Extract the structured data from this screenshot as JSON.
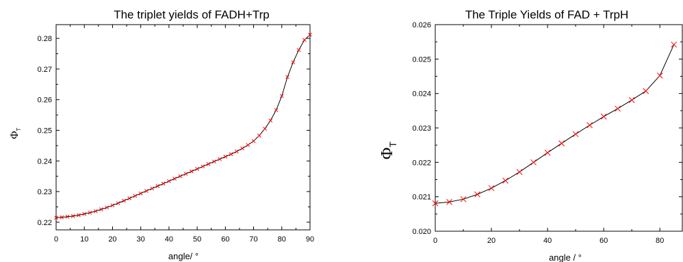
{
  "chart_data": [
    {
      "type": "line",
      "title": "The triplet yields of FADH+Trp",
      "xlabel": "angle/ °",
      "ylabel_main": "Φ",
      "ylabel_sub": "T",
      "xlim": [
        0,
        90
      ],
      "ylim": [
        0.2175,
        0.2845
      ],
      "xticks": [
        "0",
        "10",
        "20",
        "30",
        "40",
        "50",
        "60",
        "70",
        "80",
        "90"
      ],
      "yticks": [
        "0.22",
        "0.23",
        "0.24",
        "0.25",
        "0.26",
        "0.27",
        "0.28"
      ],
      "grid": false,
      "series": [
        {
          "line_color": "#000000",
          "marker_color": "#ff0000",
          "marker": "x",
          "x": [
            0,
            2,
            4,
            6,
            8,
            10,
            12,
            14,
            16,
            18,
            20,
            22,
            24,
            26,
            28,
            30,
            32,
            34,
            36,
            38,
            40,
            42,
            44,
            46,
            48,
            50,
            52,
            54,
            56,
            58,
            60,
            62,
            64,
            66,
            68,
            70,
            72,
            74,
            76,
            78,
            80,
            82,
            84,
            86,
            88,
            90
          ],
          "y": [
            0.2215,
            0.2216,
            0.2218,
            0.222,
            0.2223,
            0.2227,
            0.2231,
            0.2236,
            0.2242,
            0.2248,
            0.2255,
            0.2262,
            0.227,
            0.2278,
            0.2286,
            0.2294,
            0.2302,
            0.231,
            0.2318,
            0.2326,
            0.2334,
            0.2342,
            0.235,
            0.2358,
            0.2366,
            0.2374,
            0.2382,
            0.239,
            0.2398,
            0.2406,
            0.2414,
            0.2422,
            0.2431,
            0.2441,
            0.2452,
            0.2465,
            0.2483,
            0.2505,
            0.2532,
            0.2566,
            0.2612,
            0.2674,
            0.2722,
            0.2762,
            0.2795,
            0.2812
          ]
        }
      ]
    },
    {
      "type": "line",
      "title": "The Triple Yields of FAD + TrpH",
      "xlabel": "angle / °",
      "ylabel_main": "Φ",
      "ylabel_sub": "T",
      "xlim": [
        0,
        88
      ],
      "ylim": [
        0.02,
        0.026
      ],
      "xticks": [
        "0",
        "20",
        "40",
        "60",
        "80"
      ],
      "yticks": [
        "0.020",
        "0.021",
        "0.022",
        "0.023",
        "0.024",
        "0.025",
        "0.026"
      ],
      "grid": false,
      "series": [
        {
          "line_color": "#000000",
          "marker_color": "#ff0000",
          "marker": "x",
          "x": [
            0,
            5,
            10,
            15,
            20,
            25,
            30,
            35,
            40,
            45,
            50,
            55,
            60,
            65,
            70,
            75,
            80,
            85
          ],
          "y": [
            0.02081,
            0.02085,
            0.02093,
            0.02107,
            0.02125,
            0.02147,
            0.02172,
            0.022,
            0.02228,
            0.02255,
            0.02282,
            0.02308,
            0.02333,
            0.02356,
            0.02381,
            0.02407,
            0.02452,
            0.02542
          ]
        }
      ]
    }
  ]
}
